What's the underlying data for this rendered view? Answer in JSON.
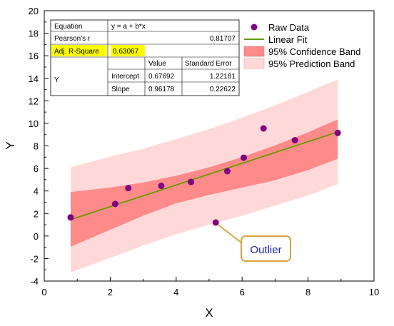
{
  "chart_data": {
    "type": "scatter",
    "xlabel": "X",
    "ylabel": "Y",
    "xlim": [
      0,
      10
    ],
    "ylim": [
      -4,
      20
    ],
    "xticks": [
      0,
      2,
      4,
      6,
      8,
      10
    ],
    "yticks": [
      -4,
      -2,
      0,
      2,
      4,
      6,
      8,
      10,
      12,
      14,
      16,
      18,
      20
    ],
    "grid": false,
    "legend_position": "top-right",
    "series": [
      {
        "name": "Raw Data",
        "kind": "scatter",
        "color": "#800080",
        "x": [
          0.8,
          2.15,
          2.55,
          3.55,
          4.45,
          5.55,
          6.05,
          6.65,
          7.6,
          8.9
        ],
        "y": [
          1.65,
          2.85,
          4.25,
          4.45,
          4.8,
          5.75,
          6.95,
          9.55,
          8.5,
          9.15
        ]
      },
      {
        "name": "Outlier",
        "kind": "outlier",
        "color": "#800080",
        "x": [
          5.2
        ],
        "y": [
          1.2
        ]
      },
      {
        "name": "Linear Fit",
        "kind": "line",
        "color": "#669900",
        "x": [
          0.8,
          8.9
        ],
        "y": [
          1.45,
          9.24
        ]
      },
      {
        "name": "95% Confidence Band",
        "kind": "band",
        "color": "#ff8a8a",
        "x": [
          0.8,
          2.0,
          3.0,
          4.0,
          5.0,
          6.0,
          7.0,
          8.0,
          8.9
        ],
        "upper": [
          3.9,
          4.3,
          4.75,
          5.35,
          6.1,
          7.0,
          8.05,
          9.2,
          10.35
        ],
        "lower": [
          -0.95,
          0.55,
          1.8,
          2.9,
          3.65,
          4.3,
          4.95,
          5.85,
          6.85
        ]
      },
      {
        "name": "95% Prediction Band",
        "kind": "band",
        "color": "#ffd9d9",
        "x": [
          0.8,
          2.0,
          3.0,
          4.0,
          5.0,
          6.0,
          7.0,
          8.0,
          8.9
        ],
        "upper": [
          6.1,
          7.05,
          7.75,
          8.6,
          9.5,
          10.5,
          11.6,
          12.8,
          13.9
        ],
        "lower": [
          -3.25,
          -1.95,
          -0.85,
          0.15,
          1.0,
          1.8,
          2.7,
          3.6,
          4.6
        ]
      }
    ],
    "annotations": [
      {
        "text": "Outlier",
        "x": 5.2,
        "y": 1.2
      }
    ],
    "stats_table": {
      "equation_label": "Equation",
      "equation_value": "y = a + b*x",
      "pearson_label": "Pearson's r",
      "pearson_value": "0.81707",
      "adj_r_label": "Adj. R-Square",
      "adj_r_value": "0.63067",
      "value_header": "Value",
      "se_header": "Standard Error",
      "row_group_label": "Y",
      "intercept_label": "Intercept",
      "intercept_value": "0.67692",
      "intercept_se": "1.22181",
      "slope_label": "Slope",
      "slope_value": "0.96178",
      "slope_se": "0.22622",
      "highlight_color": "#ffff00"
    }
  }
}
